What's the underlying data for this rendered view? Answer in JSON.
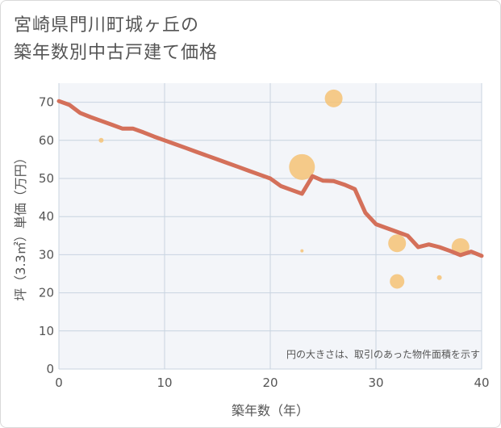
{
  "title_line1": "宮崎県門川町城ヶ丘の",
  "title_line2": "築年数別中古戸建て価格",
  "chart_data": {
    "type": "scatter+line",
    "title": "宮崎県門川町城ヶ丘の築年数別中古戸建て価格",
    "xlabel": "築年数（年）",
    "ylabel": "坪（3.3㎡）単価（万円）",
    "xlim": [
      0,
      40
    ],
    "ylim": [
      0,
      75
    ],
    "xticks": [
      0,
      10,
      20,
      30,
      40
    ],
    "yticks": [
      0,
      10,
      20,
      30,
      40,
      50,
      60,
      70
    ],
    "grid": true,
    "note": "円の大きさは、取引のあった物件面積を示す",
    "colors": {
      "line": "#d4705a",
      "bubble": "#f5c276",
      "grid": "#c8d4e0",
      "plot_bg": "#f3f5f9"
    },
    "trend_line": {
      "name": "trend",
      "x": [
        0,
        1,
        2,
        3,
        4,
        5,
        6,
        7,
        8,
        9,
        10,
        11,
        12,
        13,
        14,
        15,
        16,
        17,
        18,
        19,
        20,
        21,
        22,
        23,
        24,
        25,
        26,
        27,
        28,
        29,
        30,
        31,
        32,
        33,
        34,
        35,
        36,
        37,
        38,
        39,
        40
      ],
      "y": [
        70.3,
        69.3,
        67.2,
        66.1,
        65.1,
        64.1,
        63.1,
        63.1,
        62.1,
        61.0,
        60.0,
        59.0,
        58.0,
        57.0,
        56.0,
        55.0,
        54.0,
        53.0,
        52.0,
        51.0,
        50.0,
        48.0,
        47.0,
        46.0,
        50.6,
        49.4,
        49.3,
        48.4,
        47.2,
        41.0,
        38.0,
        37.0,
        36.0,
        35.0,
        32.0,
        32.7,
        32.0,
        31.0,
        29.9,
        30.8,
        29.7
      ]
    },
    "bubbles": [
      {
        "x": 4,
        "y": 60,
        "size": 3
      },
      {
        "x": 23,
        "y": 53,
        "size": 16
      },
      {
        "x": 23,
        "y": 31,
        "size": 2
      },
      {
        "x": 26,
        "y": 71,
        "size": 11
      },
      {
        "x": 32,
        "y": 33,
        "size": 11
      },
      {
        "x": 32,
        "y": 23,
        "size": 9
      },
      {
        "x": 36,
        "y": 24,
        "size": 3
      },
      {
        "x": 38,
        "y": 32,
        "size": 11
      }
    ]
  }
}
